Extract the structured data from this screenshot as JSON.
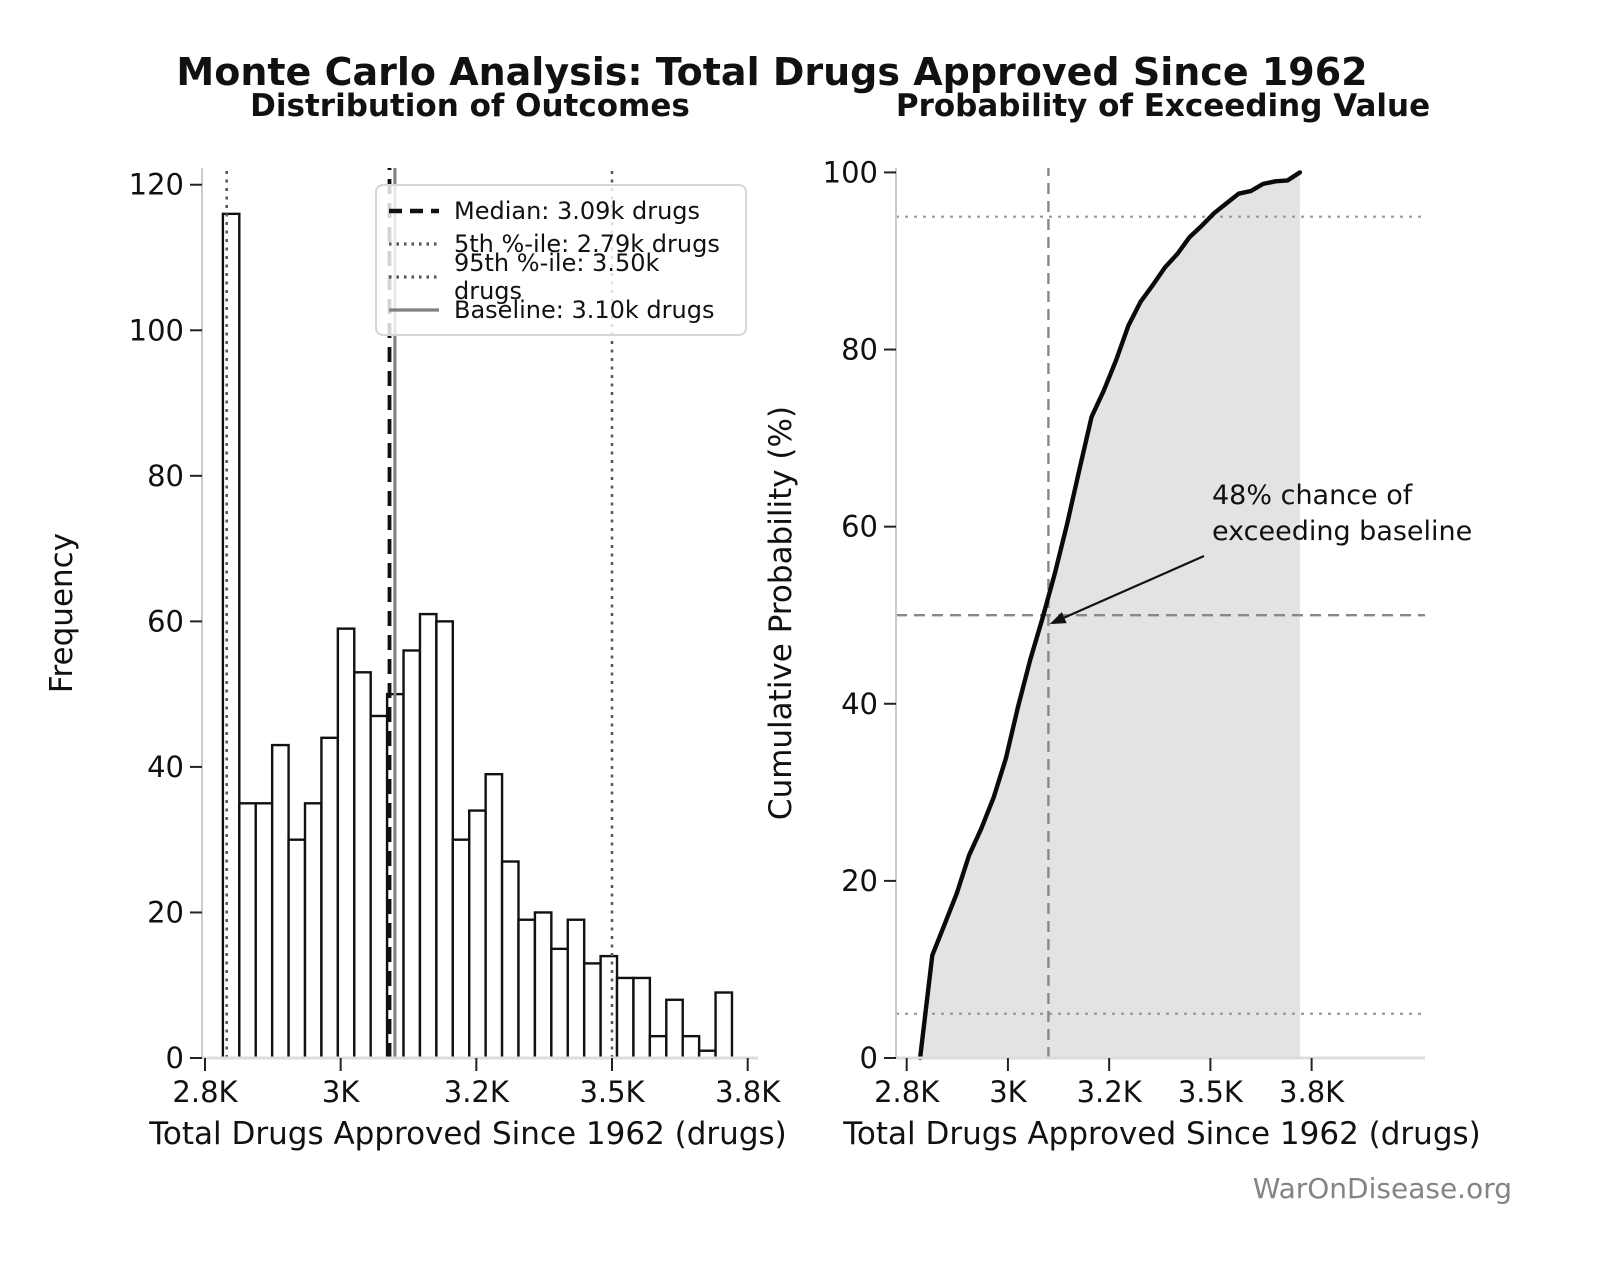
{
  "page": {
    "title": "Monte Carlo Analysis: Total Drugs Approved Since 1962",
    "footer": "WarOnDisease.org"
  },
  "colors": {
    "bar_fill": "#ffffff",
    "bar_edge": "#111111",
    "spine": "#cccccc",
    "bottom_spine": "#dcdcdc",
    "tick": "#222222",
    "tick_label": "#111111",
    "percentile_dotted": "#555555",
    "median_dashed": "#111111",
    "baseline_solid": "#808080",
    "cdf_curve": "#0a0a0a",
    "cdf_shade": "#e3e3e3",
    "gray_dashed": "#888888",
    "gray_dotted": "#999999",
    "annotation": "#111111",
    "footer": "#848484"
  },
  "chart_data": [
    {
      "type": "bar",
      "subtype": "histogram",
      "title": "Distribution of Outcomes",
      "xlabel": "Total Drugs Approved Since 1962 (drugs)",
      "ylabel": "Frequency",
      "xlim": [
        2744.5,
        3769
      ],
      "ylim": [
        0,
        122.3
      ],
      "grid": false,
      "xticks": [
        {
          "value": 2750,
          "label": "2.8K"
        },
        {
          "value": 3000,
          "label": "3K"
        },
        {
          "value": 3250,
          "label": "3.2K"
        },
        {
          "value": 3500,
          "label": "3.5K"
        },
        {
          "value": 3750,
          "label": "3.8K"
        }
      ],
      "yticks": [
        {
          "value": 0,
          "label": "0"
        },
        {
          "value": 20,
          "label": "20"
        },
        {
          "value": 40,
          "label": "40"
        },
        {
          "value": 60,
          "label": "60"
        },
        {
          "value": 80,
          "label": "80"
        },
        {
          "value": 100,
          "label": "100"
        },
        {
          "value": 120,
          "label": "120"
        }
      ],
      "bins": {
        "start": 2783,
        "width": 30.26,
        "counts": [
          116,
          35,
          35,
          43,
          30,
          35,
          44,
          59,
          53,
          47,
          50,
          56,
          61,
          60,
          30,
          34,
          39,
          27,
          19,
          20,
          15,
          19,
          13,
          14,
          11,
          11,
          3,
          8,
          3,
          1,
          9
        ]
      },
      "total_simulations": 1000,
      "stat_lines": {
        "p5": {
          "value": 2790,
          "style": "dotted-gray",
          "name": "5th percentile"
        },
        "median": {
          "value": 3090,
          "style": "dashed-black",
          "name": "median"
        },
        "baseline": {
          "value": 3100,
          "style": "solid-gray",
          "name": "baseline"
        },
        "p95": {
          "value": 3500,
          "style": "dotted-gray",
          "name": "95th percentile"
        }
      },
      "legend": {
        "position": "upper center",
        "items": [
          {
            "label": "Median: 3.09k drugs",
            "style": "dashed-black"
          },
          {
            "label": "5th %-ile: 2.79k drugs",
            "style": "dotted-gray"
          },
          {
            "label": "95th %-ile: 3.50k drugs",
            "style": "dotted-gray"
          },
          {
            "label": "Baseline: 3.10k drugs",
            "style": "solid-gray"
          }
        ]
      }
    },
    {
      "type": "line",
      "subtype": "cdf",
      "title": "Probability of Exceeding Value",
      "xlabel": "Total Drugs Approved Since 1962 (drugs)",
      "ylabel": "Cumulative Probability (%)",
      "xlim": [
        2723.6,
        4030
      ],
      "ylim": [
        0,
        100.5
      ],
      "grid": false,
      "xticks": [
        {
          "value": 2750,
          "label": "2.8K"
        },
        {
          "value": 3000,
          "label": "3K"
        },
        {
          "value": 3250,
          "label": "3.2K"
        },
        {
          "value": 3500,
          "label": "3.5K"
        },
        {
          "value": 3750,
          "label": "3.8K"
        }
      ],
      "yticks": [
        {
          "value": 0,
          "label": "0"
        },
        {
          "value": 20,
          "label": "20"
        },
        {
          "value": 40,
          "label": "40"
        },
        {
          "value": 60,
          "label": "60"
        },
        {
          "value": 80,
          "label": "80"
        },
        {
          "value": 100,
          "label": "100"
        }
      ],
      "cdf": {
        "x_start": 2783,
        "x_step": 30.26,
        "cum_pct": [
          11.6,
          15.1,
          18.6,
          22.9,
          25.9,
          29.4,
          33.8,
          39.7,
          45.0,
          49.7,
          54.7,
          60.3,
          66.4,
          72.4,
          75.4,
          78.8,
          82.7,
          85.4,
          87.3,
          89.3,
          90.8,
          92.7,
          94.0,
          95.4,
          96.5,
          97.6,
          97.9,
          98.7,
          99.0,
          99.1,
          100.0
        ]
      },
      "shade_under_curve": true,
      "hlines": [
        {
          "value": 5,
          "style": "dotted-gray"
        },
        {
          "value": 50,
          "style": "dashed-gray"
        },
        {
          "value": 95,
          "style": "dotted-gray"
        }
      ],
      "vline": {
        "value": 3100,
        "style": "dashed-gray",
        "name": "baseline"
      },
      "annotation": {
        "line1": "48% chance of",
        "line2": "exceeding baseline",
        "points_to": {
          "x": 3098,
          "y_pct": 49
        }
      }
    }
  ]
}
